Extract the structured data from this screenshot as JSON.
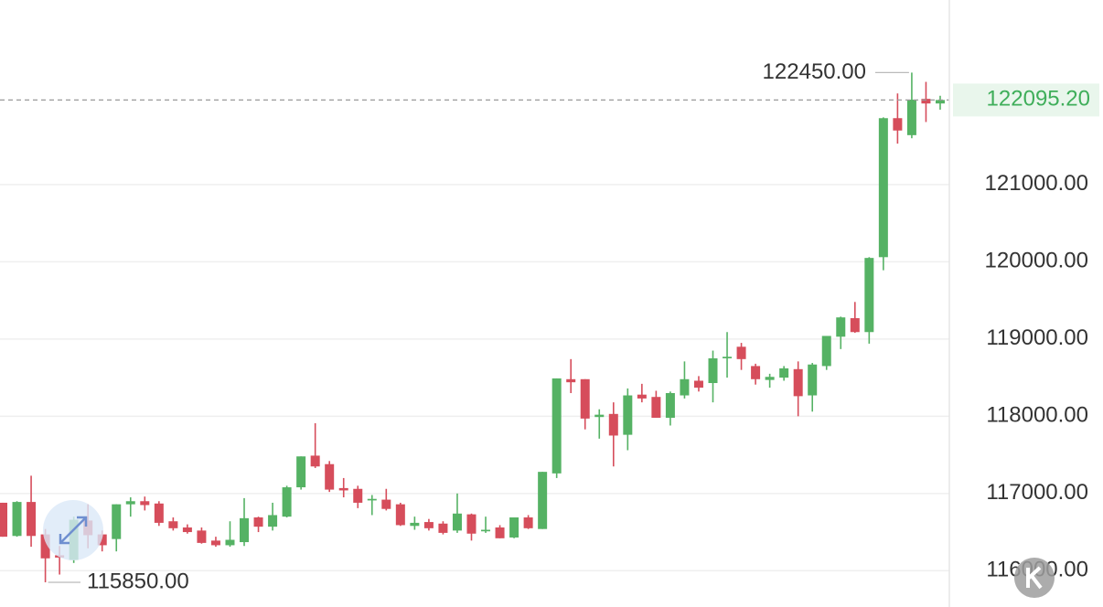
{
  "chart_data": {
    "type": "candlestick",
    "categories": [
      null,
      null,
      null,
      null,
      null,
      null,
      null,
      null,
      null,
      null,
      null,
      null,
      null,
      null,
      null,
      null,
      null,
      null,
      null,
      null,
      null,
      null,
      null,
      null,
      null,
      null,
      null,
      null,
      null,
      null,
      null,
      null,
      null,
      null,
      null,
      null,
      null,
      null,
      null,
      null,
      null,
      null,
      null,
      null,
      null,
      null,
      null,
      null,
      null,
      null,
      null,
      null,
      null,
      null,
      null,
      null,
      null,
      null,
      null,
      null,
      null,
      null,
      null,
      null,
      null,
      null,
      null
    ],
    "open": [
      116880,
      116450,
      116890,
      116470,
      116200,
      116140,
      116650,
      116470,
      116410,
      116860,
      116900,
      116870,
      116640,
      116560,
      116520,
      116390,
      116330,
      116370,
      116690,
      116570,
      116700,
      117080,
      117490,
      117380,
      117070,
      117060,
      116910,
      116920,
      116860,
      116580,
      116630,
      116610,
      116520,
      116730,
      116510,
      116560,
      116430,
      116690,
      116540,
      117260,
      118480,
      118480,
      117990,
      118030,
      117760,
      118280,
      118250,
      117980,
      118270,
      118460,
      118430,
      118750,
      118900,
      118650,
      118470,
      118500,
      118610,
      118270,
      118650,
      119030,
      119270,
      119090,
      120060,
      121860,
      121640,
      122110,
      122050
    ],
    "high": [
      116880,
      116900,
      117230,
      116540,
      116320,
      116700,
      116860,
      116520,
      116860,
      116950,
      116960,
      116900,
      116690,
      116600,
      116560,
      116440,
      116640,
      116940,
      116700,
      116880,
      117100,
      117480,
      117910,
      117420,
      117200,
      117100,
      116980,
      117060,
      116880,
      116700,
      116670,
      116640,
      117000,
      116740,
      116700,
      116590,
      116690,
      116720,
      117280,
      118490,
      118740,
      118480,
      118090,
      118180,
      118360,
      118420,
      118330,
      118320,
      118710,
      118520,
      118850,
      119090,
      118950,
      118680,
      118550,
      118650,
      118710,
      118690,
      119040,
      119290,
      119480,
      120060,
      121870,
      122180,
      122450,
      122330,
      122150
    ],
    "low": [
      116440,
      116440,
      116310,
      115850,
      115950,
      116100,
      116290,
      116250,
      116250,
      116700,
      116780,
      116580,
      116520,
      116480,
      116350,
      116310,
      116310,
      116320,
      116500,
      116520,
      116690,
      117050,
      117330,
      117020,
      116950,
      116810,
      116720,
      116780,
      116580,
      116530,
      116520,
      116470,
      116490,
      116390,
      116490,
      116420,
      116420,
      116540,
      116540,
      117200,
      118300,
      117830,
      117710,
      117350,
      117560,
      118180,
      117980,
      117880,
      118230,
      118320,
      118180,
      118500,
      118600,
      118410,
      118370,
      118460,
      118000,
      118060,
      118600,
      118870,
      119080,
      118940,
      119890,
      121530,
      121600,
      121810,
      121970
    ],
    "close": [
      116440,
      116890,
      116450,
      116160,
      116170,
      116660,
      116460,
      116330,
      116860,
      116900,
      116850,
      116620,
      116550,
      116500,
      116360,
      116330,
      116400,
      116680,
      116570,
      116720,
      117080,
      117480,
      117350,
      117050,
      117040,
      116880,
      116930,
      116800,
      116590,
      116620,
      116550,
      116490,
      116740,
      116480,
      116530,
      116420,
      116690,
      116550,
      117280,
      118490,
      118440,
      117970,
      118020,
      117750,
      118270,
      118230,
      117980,
      118300,
      118480,
      118370,
      118750,
      118770,
      118740,
      118480,
      118510,
      118620,
      118260,
      118670,
      119040,
      119280,
      119090,
      120050,
      121860,
      121700,
      122100,
      122050,
      122095.2
    ],
    "up_color": "#55b264",
    "down_color": "#d64d5b",
    "ylim": [
      115530,
      123390
    ],
    "yticks": [
      {
        "value": 116000,
        "label": "116000.00"
      },
      {
        "value": 117000,
        "label": "117000.00"
      },
      {
        "value": 118000,
        "label": "118000.00"
      },
      {
        "value": 119000,
        "label": "119000.00"
      },
      {
        "value": 120000,
        "label": "120000.00"
      },
      {
        "value": 121000,
        "label": "121000.00"
      }
    ],
    "grid": true,
    "last_price": {
      "value": 122095.2,
      "label": "122095.20"
    },
    "max_marker": {
      "value": 122450,
      "label": "122450.00"
    },
    "min_marker": {
      "value": 115850,
      "label": "115850.00"
    }
  }
}
